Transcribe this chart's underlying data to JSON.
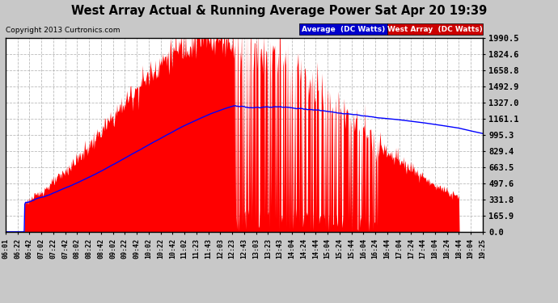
{
  "title": "West Array Actual & Running Average Power Sat Apr 20 19:39",
  "copyright": "Copyright 2013 Curtronics.com",
  "y_ticks": [
    0.0,
    165.9,
    331.8,
    497.6,
    663.5,
    829.4,
    995.3,
    1161.1,
    1327.0,
    1492.9,
    1658.8,
    1824.6,
    1990.5
  ],
  "ymax": 1990.5,
  "ymin": 0.0,
  "bg_color": "#ffffff",
  "grid_color": "#aaaaaa",
  "bar_color": "#ff0000",
  "avg_color": "#0000ff",
  "legend_avg_bg": "#0000cc",
  "legend_west_bg": "#cc0000",
  "x_tick_labels": [
    "06:01",
    "06:22",
    "06:42",
    "07:02",
    "07:22",
    "07:42",
    "08:02",
    "08:22",
    "08:42",
    "09:02",
    "09:22",
    "09:42",
    "10:02",
    "10:22",
    "10:42",
    "11:02",
    "11:23",
    "11:43",
    "12:03",
    "12:23",
    "12:43",
    "13:03",
    "13:23",
    "13:43",
    "14:04",
    "14:24",
    "14:44",
    "15:04",
    "15:24",
    "15:44",
    "16:04",
    "16:24",
    "16:44",
    "17:04",
    "17:24",
    "17:44",
    "18:04",
    "18:24",
    "18:44",
    "19:04",
    "19:25"
  ],
  "fig_bg": "#c8c8c8"
}
